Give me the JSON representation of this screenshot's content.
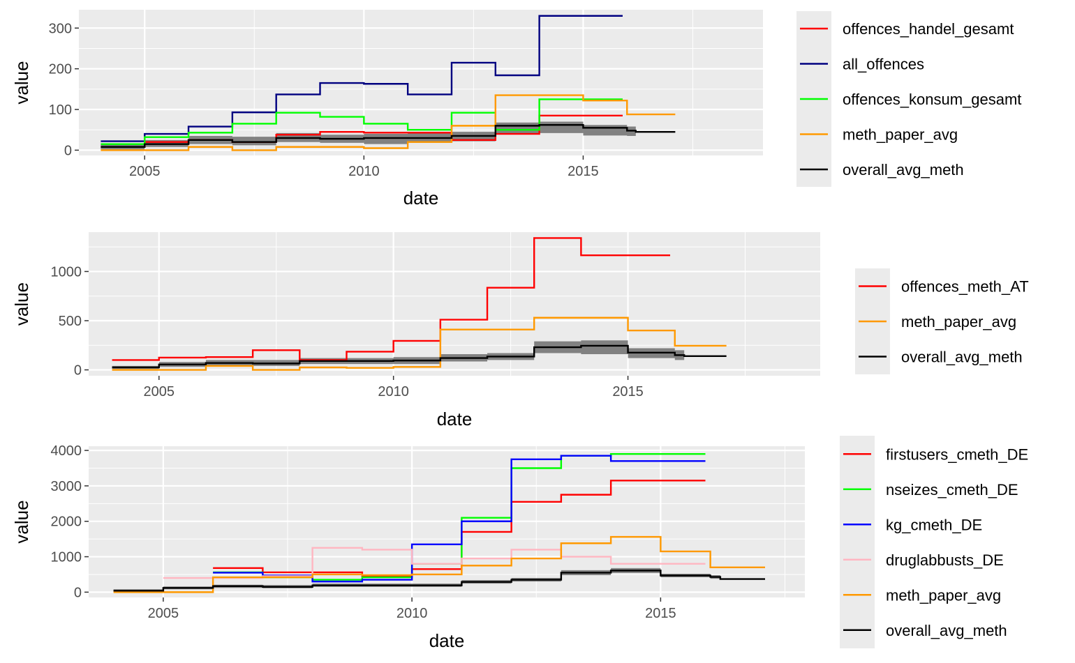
{
  "chart_data": [
    {
      "type": "line",
      "xlabel": "date",
      "ylabel": "value",
      "x_ticks": [
        2005,
        2010,
        2015
      ],
      "y_ticks": [
        0,
        100,
        200,
        300
      ],
      "xlim": [
        2003.5,
        2019.1
      ],
      "ylim": [
        -13,
        345
      ],
      "grid": true,
      "legend_position": "right",
      "ribbon": {
        "name": "overall_avg_meth",
        "x": [
          2004,
          2005,
          2006,
          2007,
          2008,
          2009,
          2010,
          2011,
          2012,
          2013,
          2014,
          2015,
          2016,
          2016.2
        ],
        "lower": [
          2,
          8,
          15,
          12,
          20,
          18,
          15,
          18,
          22,
          40,
          42,
          36,
          35,
          32
        ],
        "upper": [
          15,
          25,
          35,
          33,
          42,
          38,
          40,
          42,
          45,
          68,
          70,
          62,
          58,
          55
        ]
      },
      "series": [
        {
          "name": "offences_handel_gesamt",
          "color": "#ff0000",
          "x": [
            2004,
            2005,
            2006,
            2007,
            2008,
            2009,
            2010,
            2011,
            2012,
            2013,
            2014,
            2015
          ],
          "y": [
            8,
            20,
            25,
            20,
            38,
            45,
            43,
            43,
            25,
            40,
            85,
            85
          ]
        },
        {
          "name": "all_offences",
          "color": "#000080",
          "x": [
            2004,
            2005,
            2006,
            2007,
            2008,
            2009,
            2010,
            2011,
            2012,
            2013,
            2014,
            2015
          ],
          "y": [
            22,
            40,
            58,
            93,
            137,
            165,
            163,
            137,
            215,
            184,
            330,
            330
          ]
        },
        {
          "name": "offences_konsum_gesamt",
          "color": "#00ff00",
          "x": [
            2004,
            2005,
            2006,
            2007,
            2008,
            2009,
            2010,
            2011,
            2012,
            2013,
            2014,
            2015
          ],
          "y": [
            15,
            32,
            43,
            65,
            92,
            82,
            65,
            50,
            92,
            50,
            125,
            125
          ]
        },
        {
          "name": "meth_paper_avg",
          "color": "#ff9900",
          "x": [
            2004,
            2005,
            2006,
            2007,
            2008,
            2009,
            2010,
            2011,
            2012,
            2013,
            2014,
            2015,
            2016,
            2016.2
          ],
          "y": [
            0,
            0,
            8,
            0,
            8,
            8,
            5,
            20,
            60,
            135,
            135,
            122,
            88,
            88
          ]
        },
        {
          "name": "overall_avg_meth",
          "color": "#000000",
          "x": [
            2004,
            2005,
            2006,
            2007,
            2008,
            2009,
            2010,
            2011,
            2012,
            2013,
            2014,
            2015,
            2016,
            2016.2
          ],
          "y": [
            8,
            15,
            25,
            20,
            30,
            28,
            30,
            30,
            35,
            60,
            62,
            55,
            48,
            45
          ]
        }
      ]
    },
    {
      "type": "line",
      "xlabel": "date",
      "ylabel": "value",
      "x_ticks": [
        2005,
        2010,
        2015
      ],
      "y_ticks": [
        0,
        500,
        1000
      ],
      "xlim": [
        2003.5,
        2019.1
      ],
      "ylim": [
        -60,
        1400
      ],
      "grid": true,
      "legend_position": "right",
      "ribbon": {
        "name": "overall_avg_meth",
        "x": [
          2004,
          2005,
          2006,
          2007,
          2008,
          2009,
          2010,
          2011,
          2012,
          2013,
          2014,
          2015,
          2016,
          2016.2
        ],
        "lower": [
          10,
          30,
          40,
          40,
          60,
          60,
          60,
          85,
          100,
          170,
          160,
          120,
          100,
          100
        ],
        "upper": [
          40,
          80,
          100,
          100,
          120,
          120,
          130,
          160,
          170,
          290,
          300,
          220,
          200,
          200
        ]
      },
      "series": [
        {
          "name": "offences_meth_AT",
          "color": "#ff0000",
          "x": [
            2004,
            2005,
            2006,
            2007,
            2008,
            2009,
            2010,
            2011,
            2012,
            2013,
            2014,
            2015
          ],
          "y": [
            100,
            125,
            130,
            200,
            100,
            185,
            295,
            510,
            835,
            1340,
            1165,
            1165
          ]
        },
        {
          "name": "meth_paper_avg",
          "color": "#ff9900",
          "x": [
            2004,
            2005,
            2006,
            2007,
            2008,
            2009,
            2010,
            2011,
            2012,
            2013,
            2014,
            2015,
            2016,
            2016.2
          ],
          "y": [
            0,
            0,
            40,
            0,
            25,
            20,
            30,
            410,
            410,
            530,
            530,
            400,
            245,
            245
          ]
        },
        {
          "name": "overall_avg_meth",
          "color": "#000000",
          "x": [
            2004,
            2005,
            2006,
            2007,
            2008,
            2009,
            2010,
            2011,
            2012,
            2013,
            2014,
            2015,
            2016,
            2016.2
          ],
          "y": [
            25,
            55,
            70,
            65,
            90,
            90,
            95,
            120,
            135,
            230,
            245,
            175,
            150,
            140
          ]
        }
      ]
    },
    {
      "type": "line",
      "xlabel": "date",
      "ylabel": "value",
      "x_ticks": [
        2005,
        2010,
        2015
      ],
      "y_ticks": [
        0,
        1000,
        2000,
        3000,
        4000
      ],
      "xlim": [
        2003.5,
        2017.9
      ],
      "ylim": [
        -150,
        4120
      ],
      "grid": true,
      "legend_position": "right",
      "ribbon": {
        "name": "overall_avg_meth",
        "x": [
          2004,
          2005,
          2006,
          2007,
          2008,
          2009,
          2010,
          2011,
          2012,
          2013,
          2014,
          2015,
          2016,
          2016.2
        ],
        "lower": [
          10,
          80,
          120,
          110,
          150,
          150,
          150,
          240,
          300,
          480,
          540,
          420,
          380,
          300
        ],
        "upper": [
          80,
          160,
          210,
          200,
          240,
          240,
          240,
          340,
          400,
          620,
          680,
          520,
          480,
          440
        ]
      },
      "series": [
        {
          "name": "firstusers_cmeth_DE",
          "color": "#ff0000",
          "x": [
            2006,
            2007,
            2008,
            2009,
            2010,
            2011,
            2012,
            2013,
            2014,
            2015
          ],
          "y": [
            680,
            560,
            560,
            450,
            650,
            1700,
            2550,
            2750,
            3150,
            3150
          ]
        },
        {
          "name": "nseizes_cmeth_DE",
          "color": "#00ff00",
          "x": [
            2006,
            2007,
            2008,
            2009,
            2010,
            2011,
            2012,
            2013,
            2014,
            2015
          ],
          "y": [
            560,
            420,
            350,
            420,
            800,
            2100,
            3500,
            3850,
            3900,
            3900
          ]
        },
        {
          "name": "kg_cmeth_DE",
          "color": "#0000ff",
          "x": [
            2006,
            2007,
            2008,
            2009,
            2010,
            2011,
            2012,
            2013,
            2014,
            2015
          ],
          "y": [
            550,
            470,
            300,
            350,
            1350,
            2000,
            3750,
            3850,
            3700,
            3700
          ]
        },
        {
          "name": "druglabbusts_DE",
          "color": "#ffb6c1",
          "x": [
            2005,
            2006,
            2007,
            2008,
            2009,
            2010,
            2011,
            2012,
            2013,
            2014,
            2015
          ],
          "y": [
            400,
            400,
            450,
            1250,
            1200,
            800,
            950,
            1200,
            1000,
            800,
            800
          ]
        },
        {
          "name": "meth_paper_avg",
          "color": "#ff9900",
          "x": [
            2004,
            2005,
            2006,
            2007,
            2008,
            2009,
            2010,
            2011,
            2012,
            2013,
            2014,
            2015,
            2016,
            2016.2
          ],
          "y": [
            0,
            0,
            420,
            420,
            500,
            480,
            500,
            750,
            950,
            1380,
            1560,
            1150,
            700,
            700
          ]
        },
        {
          "name": "overall_avg_meth",
          "color": "#000000",
          "x": [
            2004,
            2005,
            2006,
            2007,
            2008,
            2009,
            2010,
            2011,
            2012,
            2013,
            2014,
            2015,
            2016,
            2016.2
          ],
          "y": [
            40,
            120,
            170,
            150,
            190,
            190,
            190,
            290,
            350,
            550,
            610,
            470,
            430,
            370
          ]
        }
      ]
    }
  ]
}
